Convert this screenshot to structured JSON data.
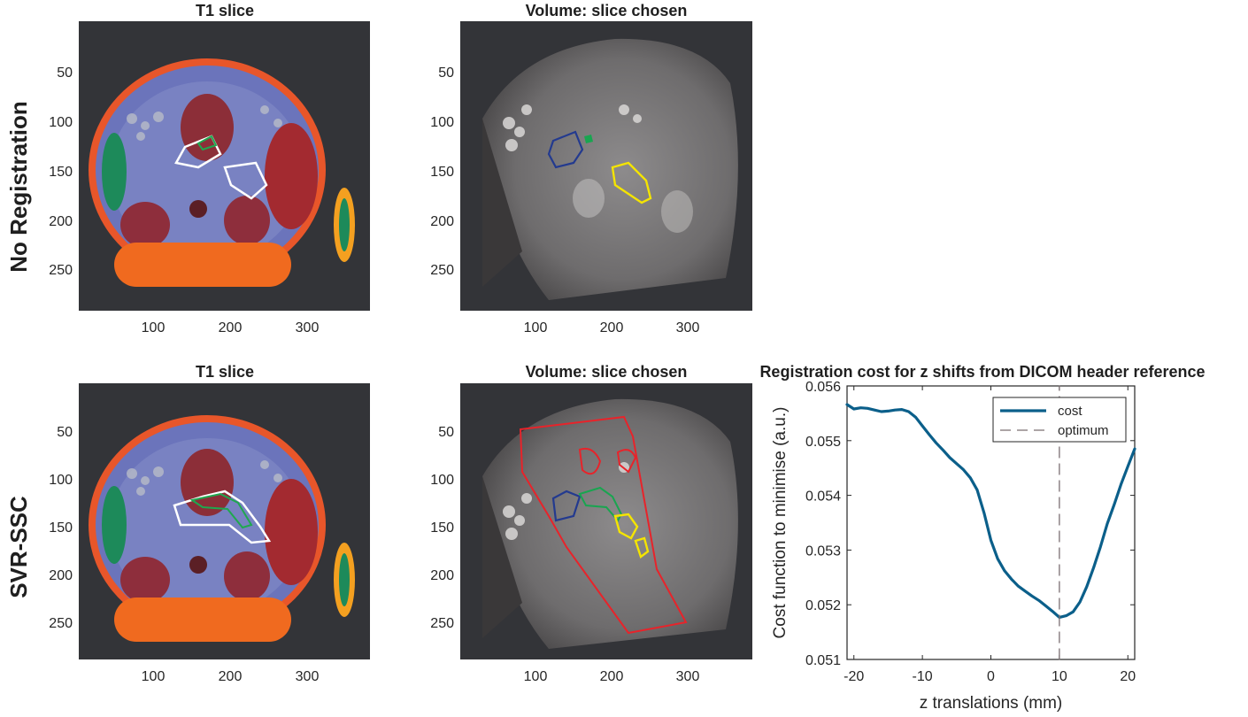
{
  "row_labels": [
    "No Registration",
    "SVR-SSC"
  ],
  "panels": [
    {
      "title": "T1 slice",
      "yticks": [
        "50",
        "100",
        "150",
        "200",
        "250"
      ],
      "xticks": [
        "100",
        "200",
        "300"
      ]
    },
    {
      "title": "Volume: slice chosen",
      "yticks": [
        "50",
        "100",
        "150",
        "200",
        "250"
      ],
      "xticks": [
        "100",
        "200",
        "300"
      ]
    },
    {
      "title": "T1 slice",
      "yticks": [
        "50",
        "100",
        "150",
        "200",
        "250"
      ],
      "xticks": [
        "100",
        "200",
        "300"
      ]
    },
    {
      "title": "Volume: slice chosen",
      "yticks": [
        "50",
        "100",
        "150",
        "200",
        "250"
      ],
      "xticks": [
        "100",
        "200",
        "300"
      ]
    }
  ],
  "image_panel_axes": {
    "x_ticks": [
      100,
      200,
      300
    ],
    "y_ticks": [
      50,
      100,
      150,
      200,
      250
    ],
    "x_range": [
      0,
      380
    ],
    "y_range": [
      0,
      290
    ]
  },
  "chart_data": {
    "type": "line",
    "title": "Registration cost for z shifts from DICOM header reference",
    "xlabel": "z translations (mm)",
    "ylabel": "Cost function to minimise (a.u.)",
    "xlim": [
      -21,
      21
    ],
    "ylim": [
      0.051,
      0.056
    ],
    "xticks": [
      -20,
      -10,
      0,
      10,
      20
    ],
    "yticks": [
      0.051,
      0.052,
      0.053,
      0.054,
      0.055,
      0.056
    ],
    "xtick_labels": [
      "-20",
      "-10",
      "0",
      "10",
      "20"
    ],
    "ytick_labels": [
      "0.051",
      "0.052",
      "0.053",
      "0.054",
      "0.055",
      "0.056"
    ],
    "grid": false,
    "legend_position": "top-right",
    "series": [
      {
        "name": "cost",
        "color": "#0b5f8a",
        "style": "solid",
        "x": [
          -21,
          -20,
          -19,
          -18,
          -17,
          -16,
          -15,
          -14,
          -13,
          -12,
          -11,
          -10,
          -9,
          -8,
          -7,
          -6,
          -5,
          -4,
          -3,
          -2,
          -1,
          0,
          1,
          2,
          3,
          4,
          5,
          6,
          7,
          8,
          9,
          10,
          11,
          12,
          13,
          14,
          15,
          16,
          17,
          18,
          19,
          20,
          21
        ],
        "y": [
          0.05566,
          0.05558,
          0.0556,
          0.05559,
          0.05556,
          0.05553,
          0.05554,
          0.05556,
          0.05557,
          0.05553,
          0.05543,
          0.05527,
          0.05511,
          0.05496,
          0.05483,
          0.05469,
          0.05458,
          0.05447,
          0.05432,
          0.0541,
          0.05368,
          0.05318,
          0.05284,
          0.05262,
          0.05247,
          0.05234,
          0.05225,
          0.05216,
          0.05208,
          0.05198,
          0.05188,
          0.05177,
          0.0518,
          0.05187,
          0.05205,
          0.05233,
          0.05268,
          0.05306,
          0.05348,
          0.05383,
          0.0542,
          0.05453,
          0.05485
        ]
      },
      {
        "name": "optimum",
        "color": "#7b6f72",
        "style": "dashed",
        "x": [
          10,
          10
        ],
        "y": [
          0.051,
          0.056
        ]
      }
    ]
  },
  "colors": {
    "background": "#ffffff",
    "image_background": "#333438",
    "contour_white": "#ffffff",
    "contour_green": "#19a550",
    "contour_blue": "#233a8f",
    "contour_yellow": "#f4e400",
    "contour_red": "#e8232a"
  }
}
